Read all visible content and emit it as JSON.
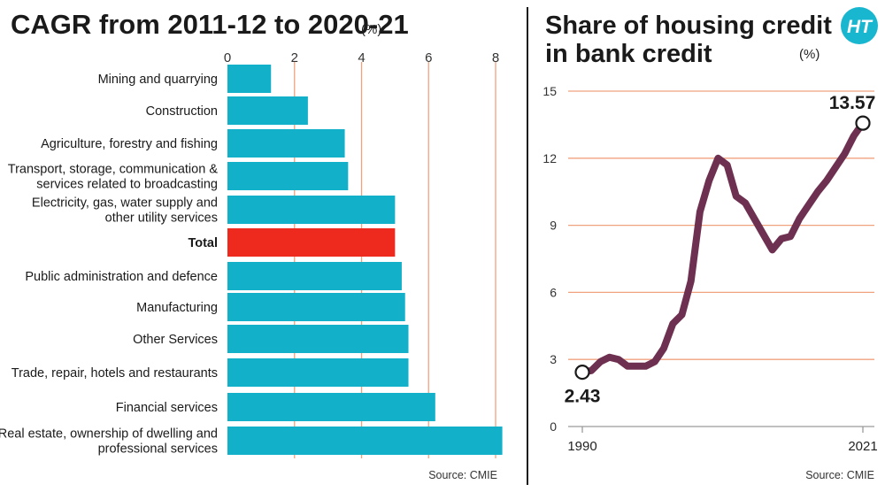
{
  "logo": {
    "text": "HT"
  },
  "chart_data": [
    {
      "type": "bar",
      "orientation": "horizontal",
      "title": "CAGR from 2011-12 to 2020-21",
      "unit": "(%)",
      "xlim": [
        0,
        8
      ],
      "xticks": [
        "0",
        "2",
        "4",
        "6",
        "8"
      ],
      "grid": true,
      "categories": [
        [
          "Mining and quarrying"
        ],
        [
          "Construction"
        ],
        [
          "Agriculture, forestry and fishing"
        ],
        [
          "Transport, storage, communication &",
          "services related to broadcasting"
        ],
        [
          "Electricity, gas, water supply and",
          "other utility services"
        ],
        [
          "Total"
        ],
        [
          "Public administration and defence"
        ],
        [
          "Manufacturing"
        ],
        [
          "Other Services"
        ],
        [
          "Trade, repair, hotels and restaurants"
        ],
        [
          "Financial services"
        ],
        [
          "Real estate, ownership of dwelling and",
          "professional services"
        ]
      ],
      "values": [
        1.3,
        2.4,
        3.5,
        3.6,
        5.0,
        5.0,
        5.2,
        5.3,
        5.4,
        5.4,
        6.2,
        8.2
      ],
      "highlight_index": 5,
      "colors": {
        "bar": "#13b0ca",
        "highlight": "#ee2a1f",
        "grid": "#f0a27f"
      },
      "source": "Source: CMIE"
    },
    {
      "type": "line",
      "title": [
        "Share of housing credit",
        "in bank credit"
      ],
      "unit": "(%)",
      "ylim": [
        0,
        15
      ],
      "yticks": [
        "0",
        "3",
        "6",
        "9",
        "12",
        "15"
      ],
      "xlim": [
        1990,
        2021
      ],
      "xtick_labels": [
        "1990",
        "2021"
      ],
      "grid": true,
      "x": [
        1990,
        1991,
        1992,
        1993,
        1994,
        1995,
        1996,
        1997,
        1998,
        1999,
        2000,
        2001,
        2002,
        2003,
        2004,
        2005,
        2006,
        2007,
        2008,
        2009,
        2010,
        2011,
        2012,
        2013,
        2014,
        2015,
        2016,
        2017,
        2018,
        2019,
        2020,
        2021
      ],
      "y": [
        2.43,
        2.5,
        2.9,
        3.1,
        3.0,
        2.7,
        2.7,
        2.7,
        2.9,
        3.5,
        4.6,
        5.0,
        6.5,
        9.6,
        11.0,
        12.0,
        11.7,
        10.3,
        10.0,
        9.3,
        8.6,
        7.9,
        8.4,
        8.5,
        9.3,
        9.9,
        10.5,
        11.0,
        11.6,
        12.2,
        13.0,
        13.57
      ],
      "start_label": "2.43",
      "end_label": "13.57",
      "colors": {
        "line": "#6e3050",
        "grid": "#f0a27f"
      },
      "source": "Source: CMIE"
    }
  ]
}
